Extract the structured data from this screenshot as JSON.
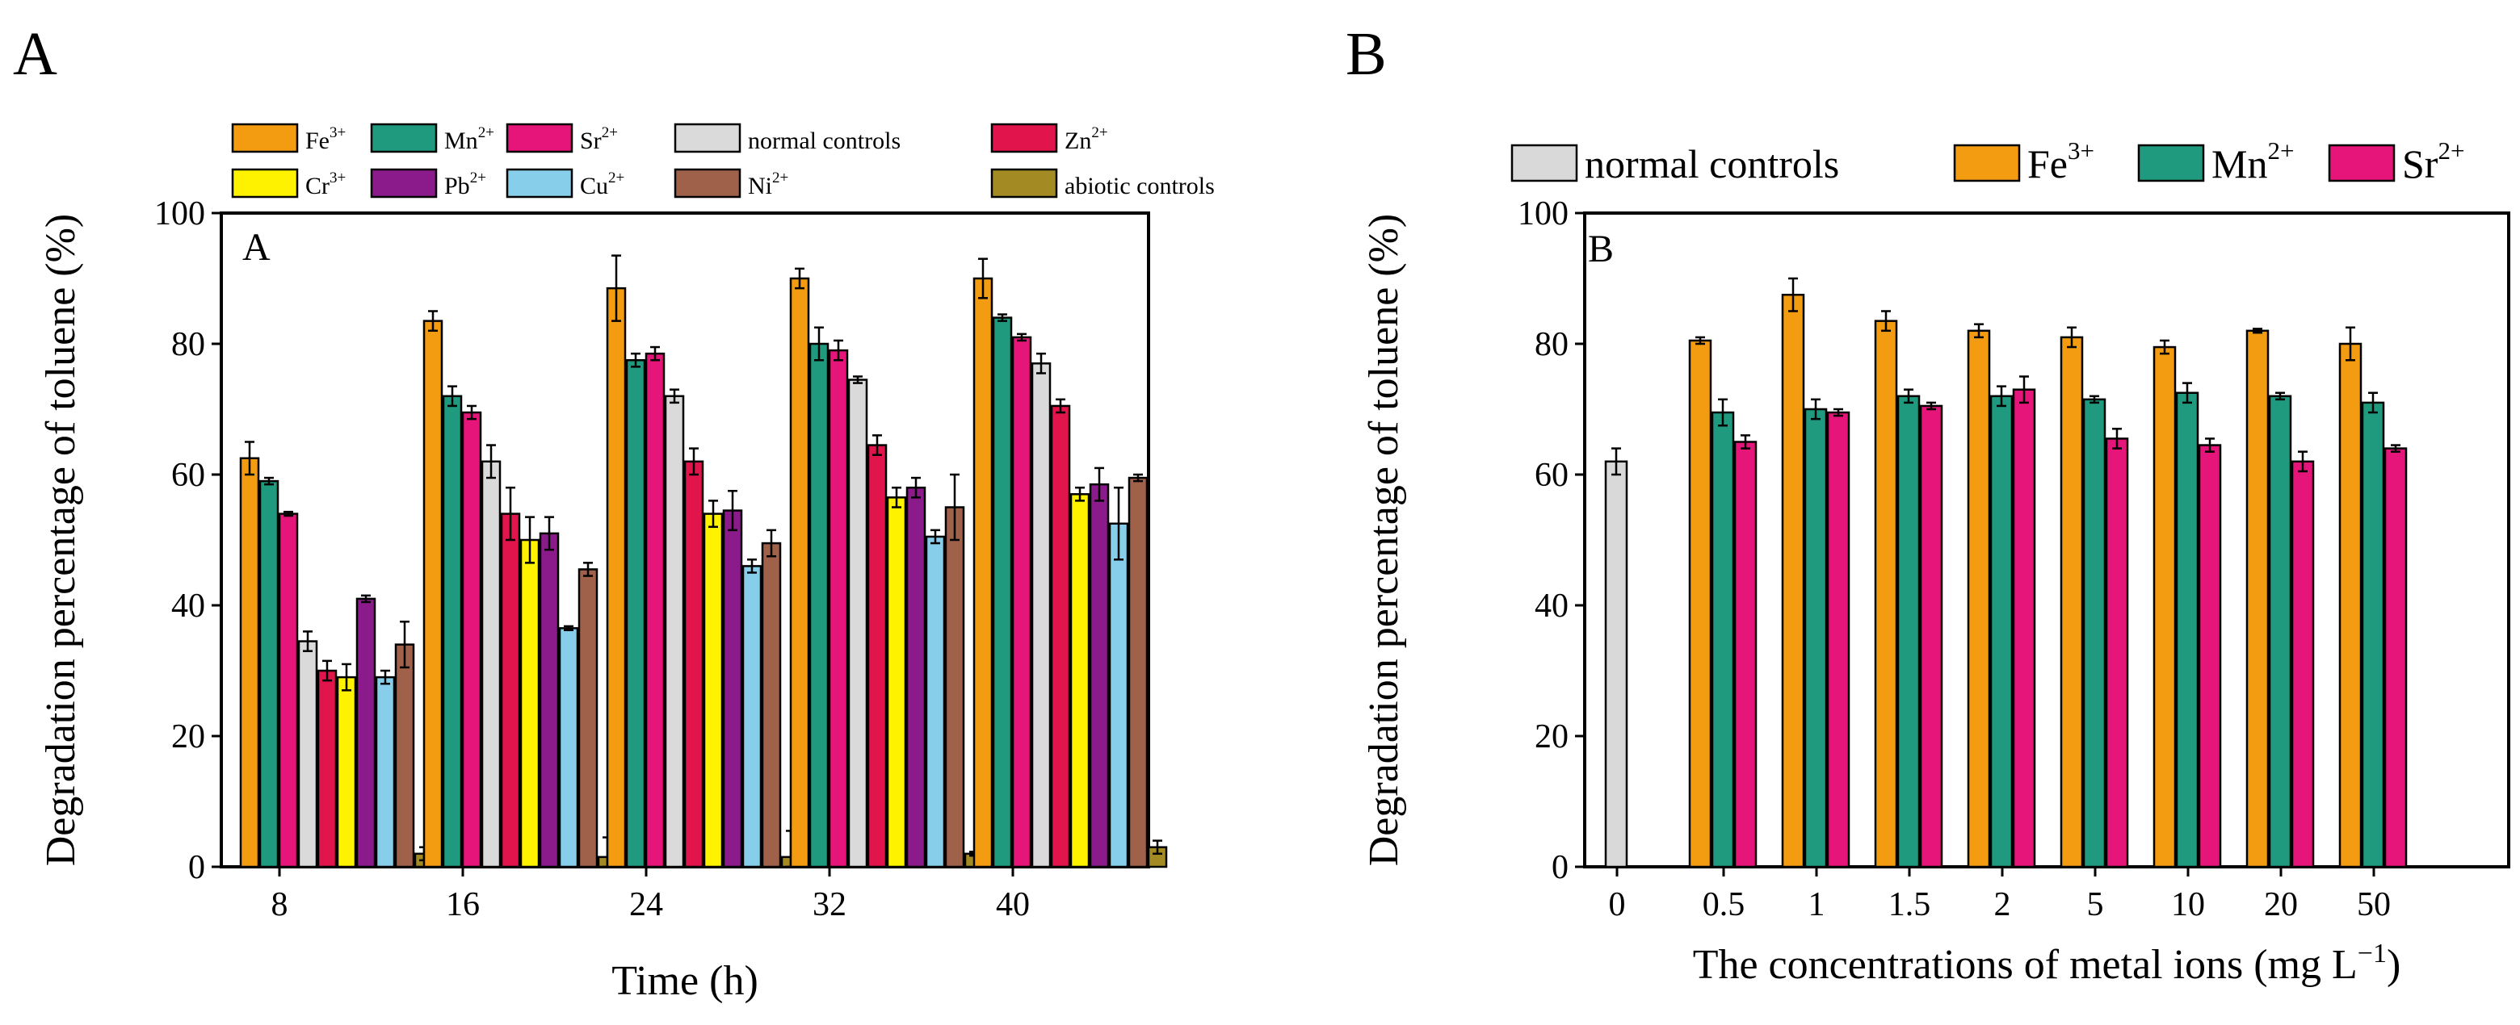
{
  "panels": {
    "a_letter": "A",
    "b_letter": "B"
  },
  "chart_data": [
    {
      "type": "bar",
      "panel_label": "A",
      "xlabel": "Time (h)",
      "ylabel": "Degradation percentage of toluene (%)",
      "ylim": [
        0,
        100
      ],
      "yticks": [
        "0",
        "20",
        "40",
        "60",
        "80",
        "100"
      ],
      "categories": [
        "8",
        "16",
        "24",
        "32",
        "40"
      ],
      "legend_position": "top",
      "series": [
        {
          "name": "Fe",
          "sup": "3+",
          "color": "#F39C12",
          "values": [
            62.5,
            83.5,
            88.5,
            90,
            90
          ],
          "errors": [
            2.5,
            1.5,
            5,
            1.5,
            3
          ]
        },
        {
          "name": "Mn",
          "sup": "2+",
          "color": "#1F9A7E",
          "values": [
            59,
            72,
            77.5,
            80,
            84
          ],
          "errors": [
            0.5,
            1.5,
            1,
            2.5,
            0.5
          ]
        },
        {
          "name": "Sr",
          "sup": "2+",
          "color": "#E6157A",
          "values": [
            54,
            69.5,
            78.5,
            79,
            81
          ],
          "errors": [
            0.3,
            1,
            1,
            1.5,
            0.5
          ]
        },
        {
          "name": "normal controls",
          "sup": "",
          "color": "#DADADA",
          "values": [
            34.5,
            62,
            72,
            74.5,
            77
          ],
          "errors": [
            1.5,
            2.5,
            1,
            0.5,
            1.5
          ]
        },
        {
          "name": "Zn",
          "sup": "2+",
          "color": "#E1154B",
          "values": [
            30,
            54,
            62,
            64.5,
            70.5
          ],
          "errors": [
            1.5,
            4,
            2,
            1.5,
            1
          ]
        },
        {
          "name": "Cr",
          "sup": "3+",
          "color": "#FFF200",
          "values": [
            29,
            50,
            54,
            56.5,
            57
          ],
          "errors": [
            2,
            3.5,
            2,
            1.5,
            1
          ]
        },
        {
          "name": "Pb",
          "sup": "2+",
          "color": "#8B1A8B",
          "values": [
            41,
            51,
            54.5,
            58,
            58.5
          ],
          "errors": [
            0.5,
            2.5,
            3,
            1.5,
            2.5
          ]
        },
        {
          "name": "Cu",
          "sup": "2+",
          "color": "#87CEEB",
          "values": [
            29,
            36.5,
            46,
            50.5,
            52.5
          ],
          "errors": [
            1,
            0.3,
            1,
            1,
            5.5
          ]
        },
        {
          "name": "Ni",
          "sup": "2+",
          "color": "#A0614A",
          "values": [
            34,
            45.5,
            49.5,
            55,
            59.5
          ],
          "errors": [
            3.5,
            1,
            2,
            5,
            0.5
          ]
        },
        {
          "name": "abiotic controls",
          "sup": "",
          "color": "#A48A22",
          "values": [
            2,
            1.5,
            1.5,
            2,
            3
          ],
          "errors": [
            1,
            3,
            4,
            0.3,
            1
          ]
        }
      ]
    },
    {
      "type": "bar",
      "panel_label": "B",
      "xlabel": "The concentrations of metal ions (mg L",
      "xlabel_sup": "−1",
      "xlabel_end": ")",
      "ylabel": "Degradation percentage of toluene (%)",
      "ylim": [
        0,
        100
      ],
      "yticks": [
        "0",
        "20",
        "40",
        "60",
        "80",
        "100"
      ],
      "categories": [
        "0",
        "0.5",
        "1",
        "1.5",
        "2",
        "5",
        "10",
        "20",
        "50"
      ],
      "legend_position": "top",
      "series": [
        {
          "name": "normal controls",
          "sup": "",
          "color": "#D9D9D9",
          "values": [
            62,
            null,
            null,
            null,
            null,
            null,
            null,
            null,
            null
          ],
          "errors": [
            2,
            null,
            null,
            null,
            null,
            null,
            null,
            null,
            null
          ]
        },
        {
          "name": "Fe",
          "sup": "3+",
          "color": "#F39C12",
          "values": [
            null,
            80.5,
            87.5,
            83.5,
            82,
            81,
            79.5,
            82,
            80
          ],
          "errors": [
            null,
            0.5,
            2.5,
            1.5,
            1,
            1.5,
            1,
            0.3,
            2.5
          ]
        },
        {
          "name": "Mn",
          "sup": "2+",
          "color": "#1F9A7E",
          "values": [
            null,
            69.5,
            70,
            72,
            72,
            71.5,
            72.5,
            72,
            71
          ],
          "errors": [
            null,
            2,
            1.5,
            1,
            1.5,
            0.5,
            1.5,
            0.5,
            1.5
          ]
        },
        {
          "name": "Sr",
          "sup": "2+",
          "color": "#E6157A",
          "values": [
            null,
            65,
            69.5,
            70.5,
            73,
            65.5,
            64.5,
            62,
            64
          ],
          "errors": [
            null,
            1,
            0.5,
            0.5,
            2,
            1.5,
            1,
            1.5,
            0.5
          ]
        }
      ]
    }
  ]
}
